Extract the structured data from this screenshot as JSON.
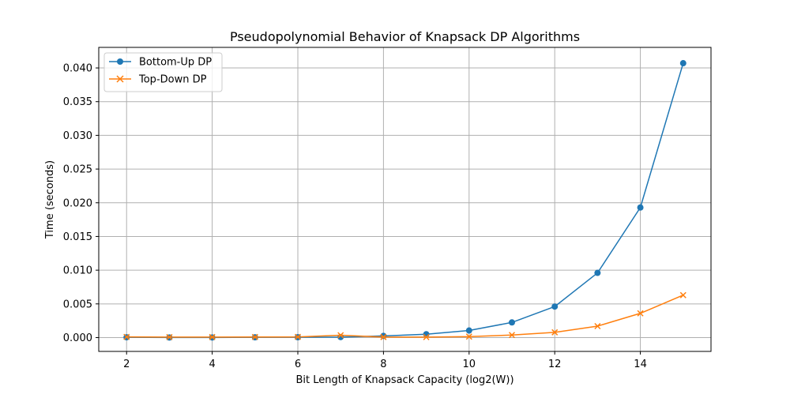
{
  "chart_data": {
    "type": "line",
    "title": "Pseudopolynomial Behavior of Knapsack DP Algorithms",
    "xlabel": "Bit Length of Knapsack Capacity (log2(W))",
    "ylabel": "Time (seconds)",
    "xlim": [
      1.35,
      15.65
    ],
    "ylim": [
      -0.00205,
      0.04305
    ],
    "x_ticks": [
      2,
      4,
      6,
      8,
      10,
      12,
      14
    ],
    "x_tick_labels": [
      "2",
      "4",
      "6",
      "8",
      "10",
      "12",
      "14"
    ],
    "y_ticks": [
      0.0,
      0.005,
      0.01,
      0.015,
      0.02,
      0.025,
      0.03,
      0.035,
      0.04
    ],
    "y_tick_labels": [
      "0.000",
      "0.005",
      "0.010",
      "0.015",
      "0.020",
      "0.025",
      "0.030",
      "0.035",
      "0.040"
    ],
    "grid": true,
    "legend_position": "top-left",
    "x": [
      2,
      3,
      4,
      5,
      6,
      7,
      8,
      9,
      10,
      11,
      12,
      13,
      14,
      15
    ],
    "series": [
      {
        "name": "Bottom-Up DP",
        "color": "#1f77b4",
        "marker": "circle",
        "values": [
          5e-05,
          1e-05,
          2e-05,
          4e-05,
          6e-05,
          8e-05,
          0.00025,
          0.0005,
          0.00105,
          0.00225,
          0.0046,
          0.0096,
          0.0193,
          0.0407
        ]
      },
      {
        "name": "Top-Down DP",
        "color": "#ff7f0e",
        "marker": "x",
        "values": [
          0.0001,
          7e-05,
          8e-05,
          9e-05,
          0.0001,
          0.00035,
          8e-05,
          7e-05,
          0.00015,
          0.00038,
          0.00078,
          0.0017,
          0.0036,
          0.0063
        ]
      }
    ]
  }
}
